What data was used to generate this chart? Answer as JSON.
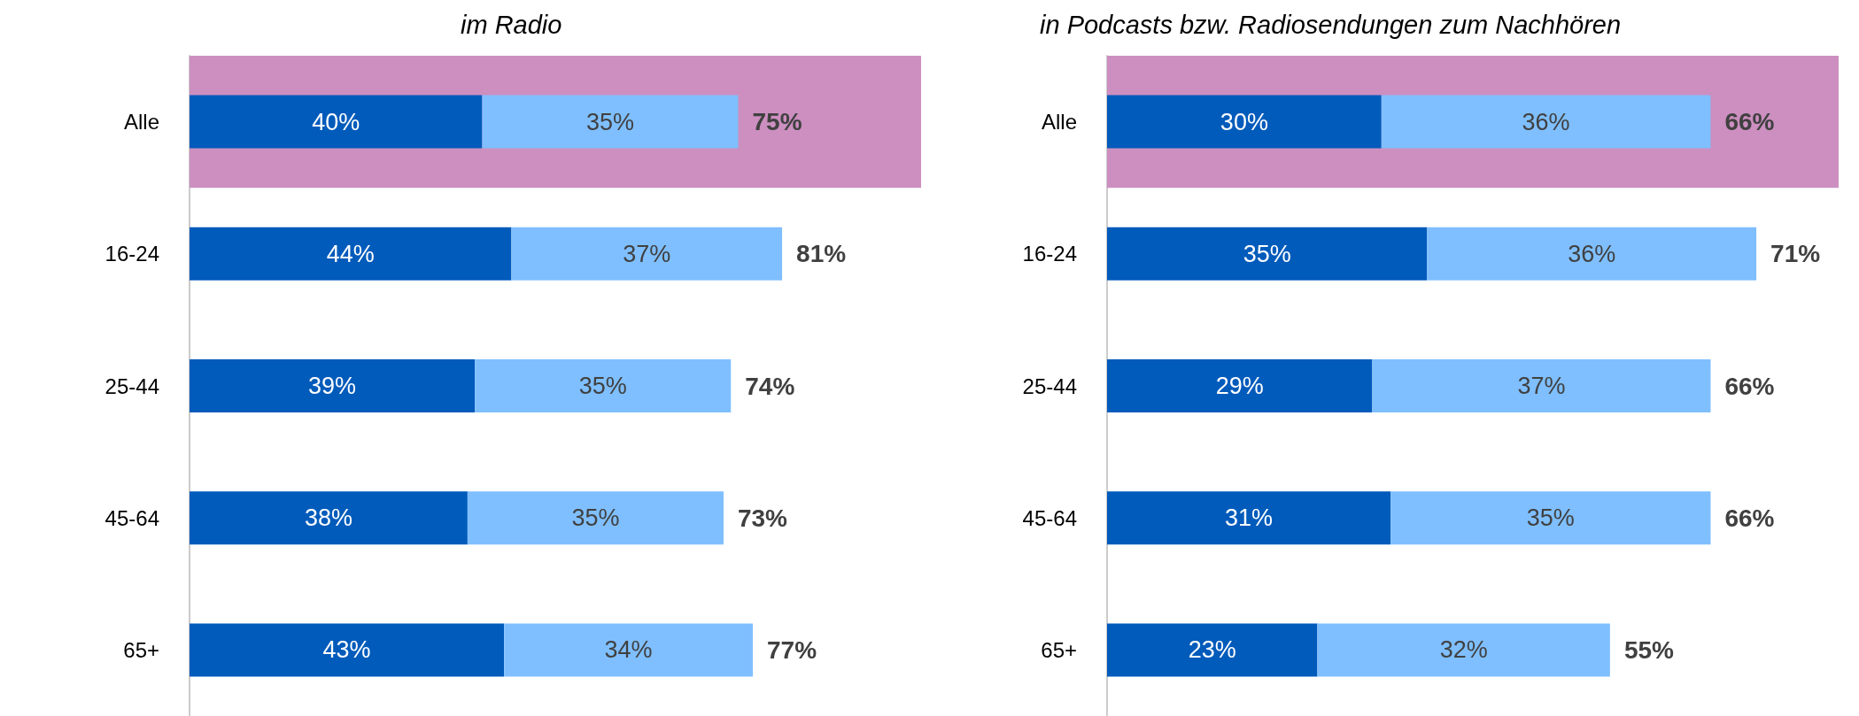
{
  "chart_data": [
    {
      "type": "bar",
      "title": "im Radio",
      "orientation": "horizontal",
      "stacked": true,
      "categories": [
        "Alle",
        "16-24",
        "25-44",
        "45-64",
        "65+"
      ],
      "series": [
        {
          "color": "#005bbb",
          "values": [
            40,
            44,
            39,
            38,
            43
          ],
          "value_labels": [
            "40%",
            "44%",
            "39%",
            "38%",
            "43%"
          ]
        },
        {
          "color": "#7fbfff",
          "values": [
            35,
            37,
            35,
            35,
            34
          ],
          "value_labels": [
            "35%",
            "37%",
            "35%",
            "35%",
            "34%"
          ]
        }
      ],
      "totals": [
        "75%",
        "81%",
        "74%",
        "73%",
        "77%"
      ],
      "tick_labels": "y",
      "grid": false,
      "bands": [
        {
          "axis": "y",
          "from": "Alle",
          "to": "Alle",
          "color": "#cc8fc0"
        }
      ]
    },
    {
      "type": "bar",
      "title": "in Podcasts bzw. Radiosendungen zum Nachhören",
      "orientation": "horizontal",
      "stacked": true,
      "categories": [
        "Alle",
        "16-24",
        "25-44",
        "45-64",
        "65+"
      ],
      "series": [
        {
          "color": "#005bbb",
          "values": [
            30,
            35,
            29,
            31,
            23
          ],
          "value_labels": [
            "30%",
            "35%",
            "29%",
            "31%",
            "23%"
          ]
        },
        {
          "color": "#7fbfff",
          "values": [
            36,
            36,
            37,
            35,
            32
          ],
          "value_labels": [
            "36%",
            "36%",
            "37%",
            "35%",
            "32%"
          ]
        }
      ],
      "totals": [
        "66%",
        "71%",
        "66%",
        "66%",
        "55%"
      ],
      "tick_labels": "y",
      "grid": false,
      "bands": [
        {
          "axis": "y",
          "from": "Alle",
          "to": "Alle",
          "color": "#cc8fc0"
        }
      ]
    }
  ]
}
